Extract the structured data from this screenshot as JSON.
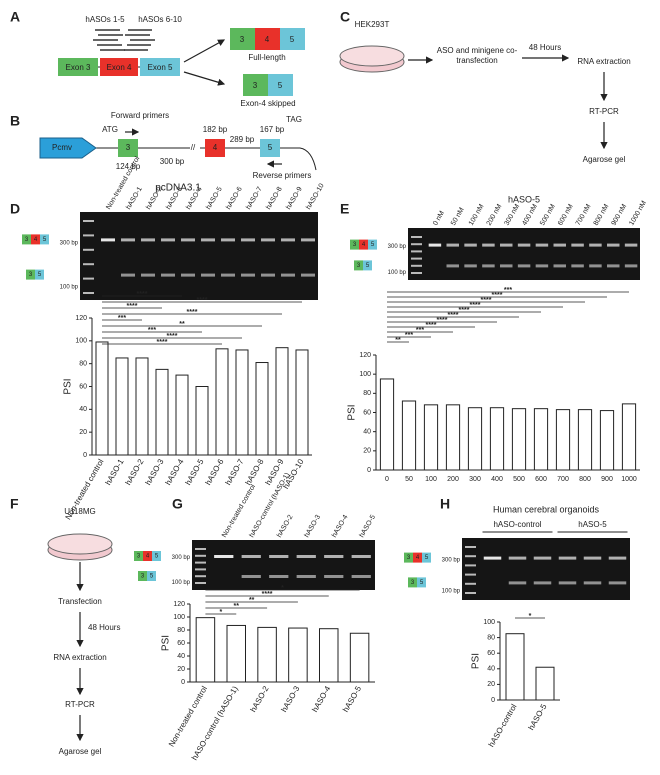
{
  "panel_letters": [
    "A",
    "B",
    "C",
    "D",
    "E",
    "F",
    "G",
    "H"
  ],
  "panel_a": {
    "probe_labels": [
      "hASOs 1-5",
      "hASOs 6-10"
    ],
    "exons": [
      "Exon 3",
      "Exon 4",
      "Exon 5"
    ],
    "products": [
      "Full-length",
      "Exon-4 skipped"
    ]
  },
  "panel_b": {
    "promoter": "Pcmv",
    "start": "ATG",
    "forward": "Forward primers",
    "reverse": "Reverse primers",
    "stop": "TAG",
    "exons": [
      "3",
      "4",
      "5"
    ],
    "sizes": [
      "124 bp",
      "300 bp",
      "182 bp",
      "289 bp",
      "167 bp"
    ],
    "vector": "pcDNA3.1"
  },
  "panel_c": {
    "cell": "HEK293T",
    "steps": [
      "ASO and minigene co-transfection",
      "RNA extraction",
      "RT-PCR",
      "Agarose gel"
    ],
    "interval": "48 Hours"
  },
  "panel_f": {
    "cell": "U118MG",
    "steps": [
      "Transfection",
      "RNA extraction",
      "RT-PCR",
      "Agarose gel"
    ],
    "interval": "48 Hours"
  },
  "gels": [
    {
      "lanes": [
        "Non-treated control",
        "hASO-1",
        "hASO-2",
        "hASO-3",
        "hASO-4",
        "hASO-5",
        "hASO-6",
        "hASO-7",
        "hASO-8",
        "hASO-9",
        "hASO-10"
      ],
      "markers": [
        "300 bp",
        "100 bp"
      ]
    },
    {
      "title": "hASO-5",
      "lanes": [
        "0 nM",
        "50 nM",
        "100 nM",
        "200 nM",
        "300 nM",
        "400 nM",
        "500 nM",
        "600 nM",
        "700 nM",
        "800 nM",
        "900 nM",
        "1000 nM"
      ],
      "markers": [
        "300 bp",
        "100 bp"
      ]
    },
    {
      "lanes": [
        "Non-treated control",
        "hASO-control (hASO-1)",
        "hASO-2",
        "hASO-3",
        "hASO-4",
        "hASO-5"
      ],
      "markers": [
        "300 bp",
        "100 bp"
      ]
    },
    {
      "title": "Human cerebral organoids",
      "groups": [
        "hASO-control",
        "hASO-5"
      ],
      "markers": [
        "300 bp",
        "100 bp"
      ]
    }
  ],
  "chart_data": [
    {
      "type": "bar",
      "ylabel": "PSI",
      "color": "#ffffff",
      "categories": [
        "Non-treated control",
        "hASO-1",
        "hASO-2",
        "hASO-3",
        "hASO-4",
        "hASO-5",
        "hASO-6",
        "hASO-7",
        "hASO-8",
        "hASO-9",
        "hASO-10"
      ],
      "values": [
        99,
        85,
        85,
        75,
        70,
        60,
        93,
        92,
        81,
        94,
        92
      ],
      "ylim": [
        0,
        120
      ],
      "yticks": [
        0,
        20,
        40,
        60,
        80,
        100,
        120
      ],
      "significance": [
        {
          "label": "****",
          "compare": [
            0,
            4
          ]
        },
        {
          "label": "****",
          "compare": [
            0,
            10
          ]
        },
        {
          "label": "****",
          "compare": [
            0,
            3
          ]
        },
        {
          "label": "****",
          "compare": [
            0,
            9
          ]
        },
        {
          "label": "***",
          "compare": [
            0,
            2
          ]
        },
        {
          "label": "**",
          "compare": [
            0,
            8
          ]
        },
        {
          "label": "***",
          "compare": [
            0,
            5
          ]
        },
        {
          "label": "****",
          "compare": [
            0,
            7
          ]
        },
        {
          "label": "****",
          "compare": [
            0,
            6
          ]
        }
      ]
    },
    {
      "type": "bar",
      "ylabel": "PSI",
      "color": "#ffffff",
      "categories": [
        "0",
        "50",
        "100",
        "200",
        "300",
        "400",
        "500",
        "600",
        "700",
        "800",
        "900",
        "1000"
      ],
      "values": [
        95,
        72,
        68,
        68,
        65,
        65,
        64,
        64,
        63,
        63,
        62,
        69
      ],
      "ylim": [
        0,
        120
      ],
      "yticks": [
        0,
        20,
        40,
        60,
        80,
        100,
        120
      ],
      "significance": [
        {
          "label": "***",
          "compare": [
            0,
            11
          ]
        },
        {
          "label": "****",
          "compare": [
            0,
            10
          ]
        },
        {
          "label": "****",
          "compare": [
            0,
            9
          ]
        },
        {
          "label": "****",
          "compare": [
            0,
            8
          ]
        },
        {
          "label": "****",
          "compare": [
            0,
            7
          ]
        },
        {
          "label": "****",
          "compare": [
            0,
            6
          ]
        },
        {
          "label": "****",
          "compare": [
            0,
            5
          ]
        },
        {
          "label": "****",
          "compare": [
            0,
            4
          ]
        },
        {
          "label": "***",
          "compare": [
            0,
            3
          ]
        },
        {
          "label": "***",
          "compare": [
            0,
            2
          ]
        },
        {
          "label": "**",
          "compare": [
            0,
            1
          ]
        }
      ]
    },
    {
      "type": "bar",
      "ylabel": "PSI",
      "color": "#ffffff",
      "categories": [
        "Non-treated control",
        "hASO-control (hASO-1)",
        "hASO-2",
        "hASO-3",
        "hASO-4",
        "hASO-5"
      ],
      "values": [
        99,
        87,
        84,
        83,
        82,
        75
      ],
      "ylim": [
        0,
        120
      ],
      "yticks": [
        0,
        20,
        40,
        60,
        80,
        100,
        120
      ],
      "significance": [
        {
          "label": "*",
          "compare": [
            0,
            5
          ]
        },
        {
          "label": "****",
          "compare": [
            0,
            4
          ]
        },
        {
          "label": "**",
          "compare": [
            0,
            3
          ]
        },
        {
          "label": "**",
          "compare": [
            0,
            2
          ]
        },
        {
          "label": "*",
          "compare": [
            0,
            1
          ]
        }
      ]
    },
    {
      "type": "bar",
      "ylabel": "PSI",
      "color": "#ffffff",
      "categories": [
        "hASO-control",
        "hASO-5"
      ],
      "values": [
        85,
        42
      ],
      "ylim": [
        0,
        100
      ],
      "yticks": [
        0,
        20,
        40,
        60,
        80,
        100
      ],
      "significance": [
        {
          "label": "*",
          "compare": [
            0,
            1
          ]
        }
      ]
    }
  ]
}
